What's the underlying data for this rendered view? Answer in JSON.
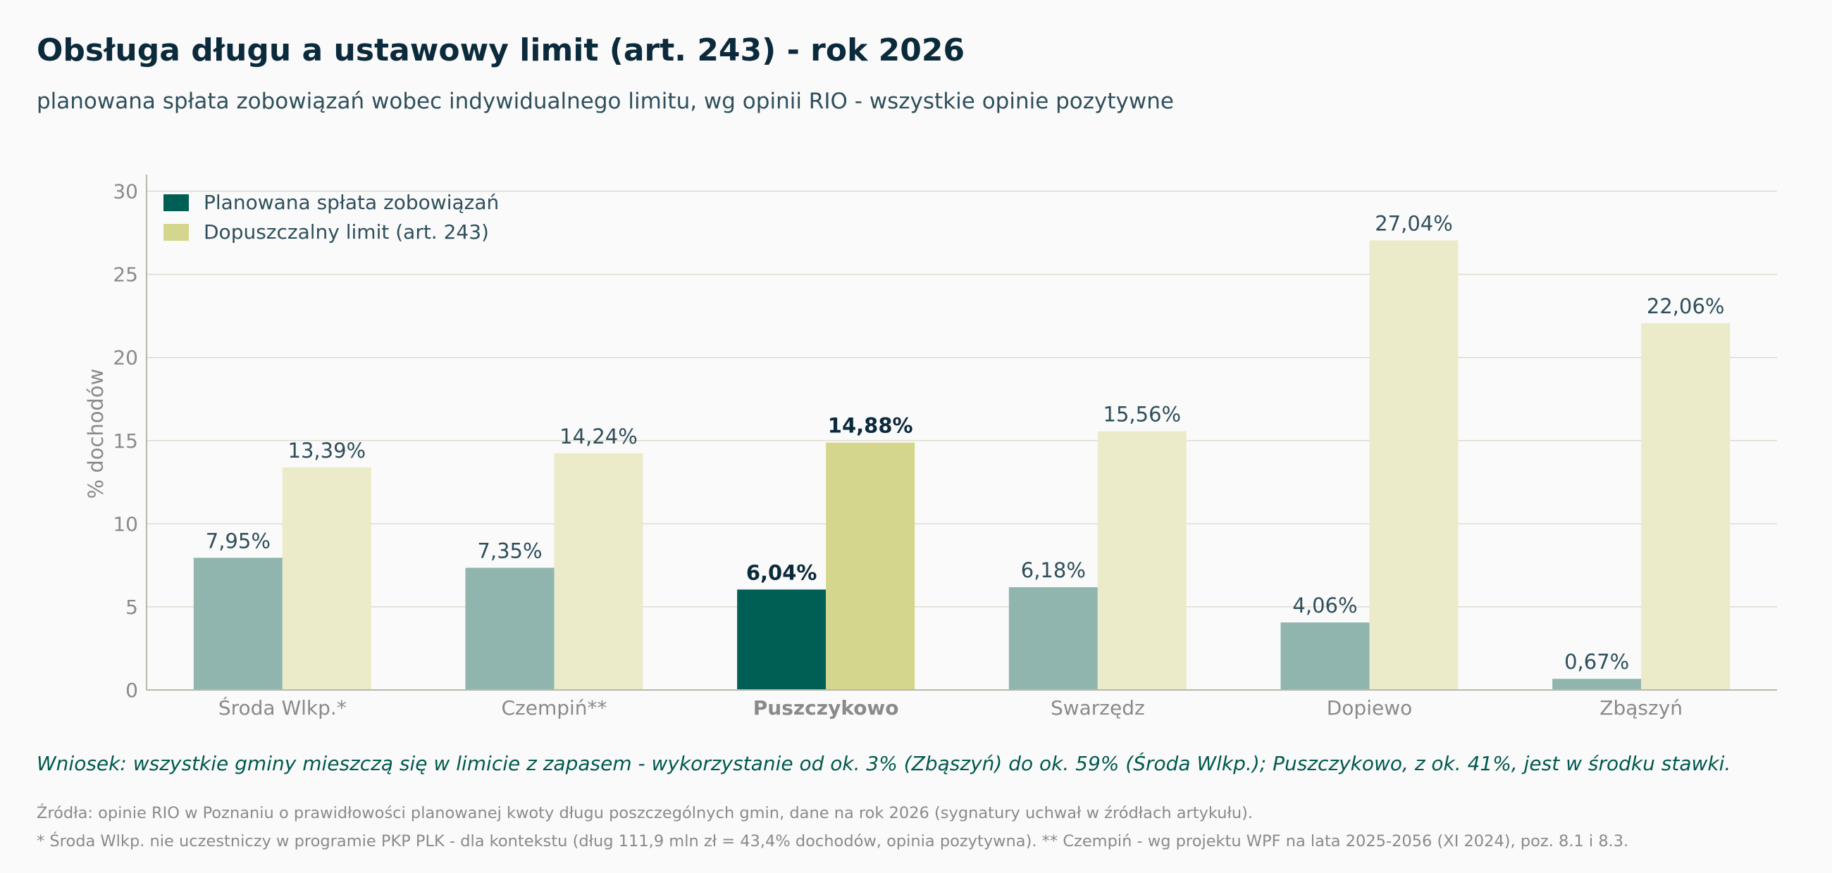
{
  "header": {
    "title": "Obsługa długu a ustawowy limit (art. 243) - rok 2026",
    "subtitle": "planowana spłata zobowiązań wobec indywidualnego limitu, wg opinii RIO - wszystkie opinie pozytywne"
  },
  "chart_data": {
    "type": "bar",
    "title": "Obsługa długu a ustawowy limit (art. 243) - rok 2026",
    "ylabel": "% dochodów",
    "ylim": [
      0,
      31
    ],
    "yticks": [
      0,
      5,
      10,
      15,
      20,
      25,
      30
    ],
    "grid": true,
    "legend_position": "top-left",
    "categories": [
      "Środa Wlkp.*",
      "Czempiń**",
      "Puszczykowo",
      "Swarzędz",
      "Dopiewo",
      "Zbąszyń"
    ],
    "highlight_category": "Puszczykowo",
    "series": [
      {
        "name": "Planowana spłata zobowiązań",
        "values": [
          7.95,
          7.35,
          6.04,
          6.18,
          4.06,
          0.67
        ],
        "labels": [
          "7,95%",
          "7,35%",
          "6,04%",
          "6,18%",
          "4,06%",
          "0,67%"
        ],
        "color": "#8fb5ae",
        "highlight_color": "#005f55"
      },
      {
        "name": "Dopuszczalny limit (art. 243)",
        "values": [
          13.39,
          14.24,
          14.88,
          15.56,
          27.04,
          22.06
        ],
        "labels": [
          "13,39%",
          "14,24%",
          "14,88%",
          "15,56%",
          "27,04%",
          "22,06%"
        ],
        "color": "#ecebc9",
        "highlight_color": "#d5d68e"
      }
    ]
  },
  "colors": {
    "grid": "#dcdcd0",
    "axis": "#b8b8a8",
    "tick_text": "#8a8a8a",
    "label_text": "#2f4f5c",
    "highlight_text": "#0b2a3c"
  },
  "footer": {
    "conclusion": "Wniosek: wszystkie gminy mieszczą się w limicie z zapasem - wykorzystanie od ok. 3% (Zbąszyń) do ok. 59% (Środa Wlkp.); Puszczykowo, z ok. 41%, jest w środku stawki.",
    "source1": "Źródła: opinie RIO w Poznaniu o prawidłowości planowanej kwoty długu poszczególnych gmin, dane na rok 2026 (sygnatury uchwał w źródłach artykułu).",
    "source2": "* Środa Wlkp. nie uczestniczy w programie PKP PLK - dla kontekstu (dług 111,9 mln zł = 43,4% dochodów, opinia pozytywna). ** Czempiń - wg projektu WPF na lata 2025-2056 (XI 2024), poz. 8.1 i 8.3."
  }
}
